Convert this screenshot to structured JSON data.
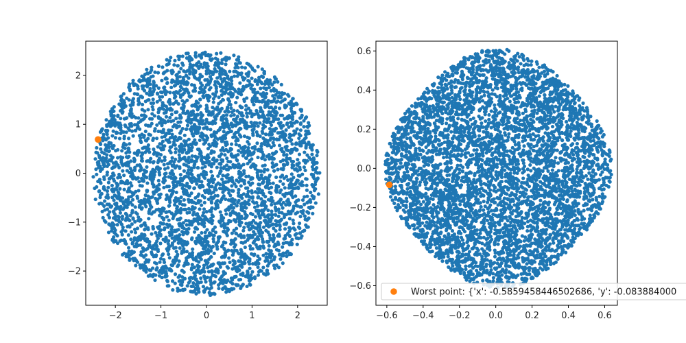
{
  "chart_data": [
    {
      "type": "scatter",
      "xlim": [
        -2.65,
        2.65
      ],
      "ylim": [
        -2.7,
        2.7
      ],
      "x_ticks": [
        -2,
        -1,
        0,
        1,
        2
      ],
      "y_ticks": [
        -2,
        -1,
        0,
        1,
        2
      ],
      "x_tick_labels": [
        "−2",
        "−1",
        "0",
        "1",
        "2"
      ],
      "y_tick_labels": [
        "−2",
        "−1",
        "0",
        "1",
        "2"
      ],
      "grid": false,
      "series": [
        {
          "kind": "cloud",
          "description_values": {
            "count": 3800,
            "radius": 2.5,
            "center": [
              0,
              0
            ]
          },
          "color": "#1f77b4"
        },
        {
          "kind": "highlight",
          "x": [
            -2.38
          ],
          "y": [
            0.69
          ],
          "color": "#ff7f0e"
        }
      ]
    },
    {
      "type": "scatter",
      "xlim": [
        -0.66,
        0.67
      ],
      "ylim": [
        -0.7,
        0.65
      ],
      "x_ticks": [
        -0.6,
        -0.4,
        -0.2,
        0.0,
        0.2,
        0.4,
        0.6
      ],
      "y_ticks": [
        -0.6,
        -0.4,
        -0.2,
        0.0,
        0.2,
        0.4,
        0.6
      ],
      "x_tick_labels": [
        "−0.6",
        "−0.4",
        "−0.2",
        "0.0",
        "0.2",
        "0.4",
        "0.6"
      ],
      "y_tick_labels": [
        "−0.6",
        "−0.4",
        "−0.2",
        "0.0",
        "0.2",
        "0.4",
        "0.6"
      ],
      "grid": false,
      "legend": {
        "placement": "lower-right",
        "entries": [
          {
            "label": "Worst point: {'x': -0.5859458446502686, 'y': -0.083884000",
            "color": "#ff7f0e"
          }
        ]
      },
      "series": [
        {
          "kind": "cloud",
          "description_values": {
            "count": 5200,
            "radius": 0.6,
            "center": [
              0.015,
              0.0
            ]
          },
          "color": "#1f77b4"
        },
        {
          "kind": "highlight",
          "name": "Worst point: {'x': -0.5859458446502686, 'y': -0.083884000",
          "x": [
            -0.5859
          ],
          "y": [
            -0.0839
          ],
          "color": "#ff7f0e"
        }
      ]
    }
  ]
}
